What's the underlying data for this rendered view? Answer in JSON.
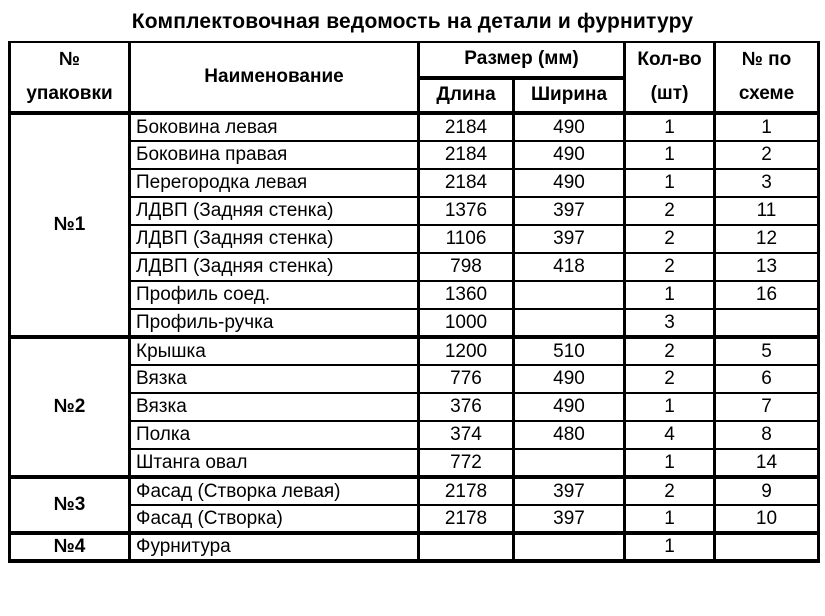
{
  "page": {
    "title": "Комплектовочная ведомость на детали и фурнитуру"
  },
  "table": {
    "header": {
      "package_line1": "№",
      "package_line2": "упаковки",
      "name": "Наименование",
      "size_group": "Размер (мм)",
      "length": "Длина",
      "width": "Ширина",
      "qty_line1": "Кол-во",
      "qty_line2": "(шт)",
      "scheme_line1": "№ по",
      "scheme_line2": "схеме"
    },
    "sections": [
      {
        "package": "№1",
        "rows": [
          {
            "name": "Боковина левая",
            "length": "2184",
            "width": "490",
            "qty": "1",
            "scheme": "1"
          },
          {
            "name": "Боковина правая",
            "length": "2184",
            "width": "490",
            "qty": "1",
            "scheme": "2"
          },
          {
            "name": "Перегородка левая",
            "length": "2184",
            "width": "490",
            "qty": "1",
            "scheme": "3"
          },
          {
            "name": "ЛДВП (Задняя стенка)",
            "length": "1376",
            "width": "397",
            "qty": "2",
            "scheme": "11"
          },
          {
            "name": "ЛДВП (Задняя стенка)",
            "length": "1106",
            "width": "397",
            "qty": "2",
            "scheme": "12"
          },
          {
            "name": "ЛДВП (Задняя стенка)",
            "length": "798",
            "width": "418",
            "qty": "2",
            "scheme": "13"
          },
          {
            "name": "Профиль соед.",
            "length": "1360",
            "width": "",
            "qty": "1",
            "scheme": "16"
          },
          {
            "name": "Профиль-ручка",
            "length": "1000",
            "width": "",
            "qty": "3",
            "scheme": ""
          }
        ]
      },
      {
        "package": "№2",
        "rows": [
          {
            "name": "Крышка",
            "length": "1200",
            "width": "510",
            "qty": "2",
            "scheme": "5"
          },
          {
            "name": "Вязка",
            "length": "776",
            "width": "490",
            "qty": "2",
            "scheme": "6"
          },
          {
            "name": "Вязка",
            "length": "376",
            "width": "490",
            "qty": "1",
            "scheme": "7"
          },
          {
            "name": "Полка",
            "length": "374",
            "width": "480",
            "qty": "4",
            "scheme": "8"
          },
          {
            "name": "Штанга овал",
            "length": "772",
            "width": "",
            "qty": "1",
            "scheme": "14"
          }
        ]
      },
      {
        "package": "№3",
        "rows": [
          {
            "name": "Фасад (Створка левая)",
            "length": "2178",
            "width": "397",
            "qty": "2",
            "scheme": "9"
          },
          {
            "name": "Фасад (Створка)",
            "length": "2178",
            "width": "397",
            "qty": "1",
            "scheme": "10"
          }
        ]
      },
      {
        "package": "№4",
        "rows": [
          {
            "name": "Фурнитура",
            "length": "",
            "width": "",
            "qty": "1",
            "scheme": ""
          }
        ]
      }
    ]
  }
}
